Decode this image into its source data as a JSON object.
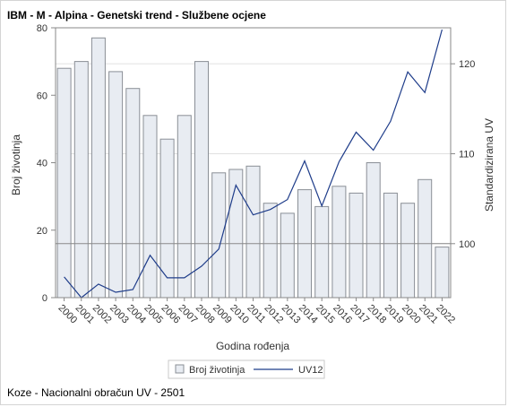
{
  "title": "IBM - M - Alpina - Genetski trend - Službene ocjene",
  "footnote": "Koze - Nacionalni obračun UV - 2501",
  "colors": {
    "bar_fill": "#e8ecf2",
    "bar_stroke": "#8a8f96",
    "line": "#1f3d8a",
    "ref_line": "#8a8a8a",
    "grid": "#e0e0e0",
    "axis": "#888888"
  },
  "chart_data": {
    "type": "bar",
    "categories": [
      "2000",
      "2001",
      "2002",
      "2003",
      "2004",
      "2005",
      "2006",
      "2007",
      "2008",
      "2009",
      "2010",
      "2011",
      "2012",
      "2013",
      "2014",
      "2015",
      "2016",
      "2017",
      "2018",
      "2019",
      "2020",
      "2021",
      "2022"
    ],
    "series": [
      {
        "name": "Broj životinja",
        "type": "bar",
        "axis": "left",
        "values": [
          68,
          70,
          77,
          67,
          62,
          54,
          47,
          54,
          70,
          37,
          38,
          39,
          28,
          25,
          32,
          27,
          33,
          31,
          40,
          31,
          28,
          35,
          15
        ]
      },
      {
        "name": "UV12",
        "type": "line",
        "axis": "right",
        "values": [
          96.3,
          94.0,
          95.5,
          94.6,
          94.9,
          98.7,
          96.2,
          96.2,
          97.5,
          99.4,
          106.5,
          103.2,
          103.8,
          104.9,
          109.2,
          104.2,
          109.1,
          112.4,
          110.4,
          113.6,
          119.1,
          116.8,
          123.8
        ]
      }
    ],
    "xlabel": "Godina rođenja",
    "ylabel": "Broj životinja",
    "y2label": "Standardizirana UV",
    "ylim": [
      0,
      80
    ],
    "y2lim": [
      94,
      124
    ],
    "yticks": [
      0,
      20,
      40,
      60,
      80
    ],
    "y2ticks": [
      100,
      110,
      120
    ],
    "reference_line_y2": 100,
    "grid": true,
    "legend_position": "bottom"
  }
}
